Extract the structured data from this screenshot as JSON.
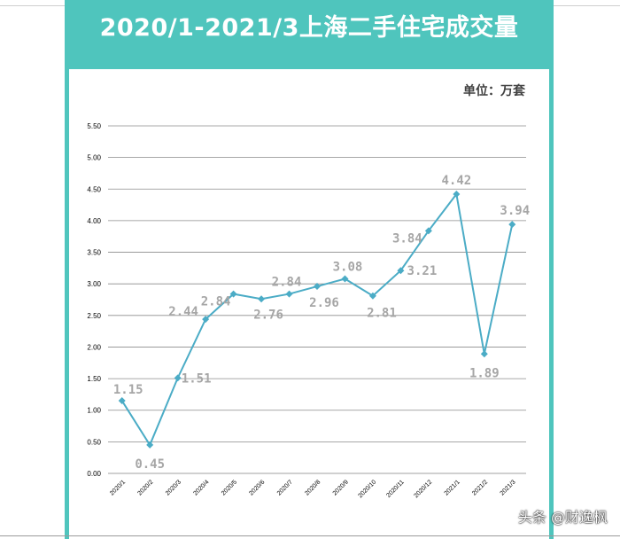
{
  "header": {
    "title": "2020/1-2021/3上海二手住宅成交量",
    "unit": "单位：万套"
  },
  "watermark": "头条 @财逸枫",
  "colors": {
    "frame": "#4fc5bd",
    "line": "#4bacc6",
    "label": "#a6a6a6"
  },
  "chart_data": {
    "type": "line",
    "title": "2020/1-2021/3上海二手住宅成交量",
    "unit": "单位：万套",
    "categories": [
      "2020/1",
      "2020/2",
      "2020/3",
      "2020/4",
      "2020/5",
      "2020/6",
      "2020/7",
      "2020/8",
      "2020/9",
      "2020/10",
      "2020/11",
      "2020/12",
      "2021/1",
      "2021/2",
      "2021/3"
    ],
    "series": [
      {
        "values": [
          1.15,
          0.45,
          1.51,
          2.44,
          2.84,
          2.76,
          2.84,
          2.96,
          3.08,
          2.81,
          3.21,
          3.84,
          4.42,
          1.89,
          3.94
        ]
      }
    ],
    "data_labels": [
      "1.15",
      "0.45",
      "1.51",
      "2.44",
      "2.84",
      "2.76",
      "2.84",
      "2.96",
      "3.08",
      "2.81",
      "3.21",
      "3.84",
      "4.42",
      "1.89",
      "3.94"
    ],
    "ylim": [
      0,
      5.5
    ],
    "yticks": [
      0.0,
      0.5,
      1.0,
      1.5,
      2.0,
      2.5,
      3.0,
      3.5,
      4.0,
      4.5,
      5.0,
      5.5
    ],
    "ytick_labels": [
      "0.00",
      "0.50",
      "1.00",
      "1.50",
      "2.00",
      "2.50",
      "3.00",
      "3.50",
      "4.00",
      "4.50",
      "5.00",
      "5.50"
    ],
    "grid": true,
    "legend": "none",
    "marker": "diamond"
  }
}
